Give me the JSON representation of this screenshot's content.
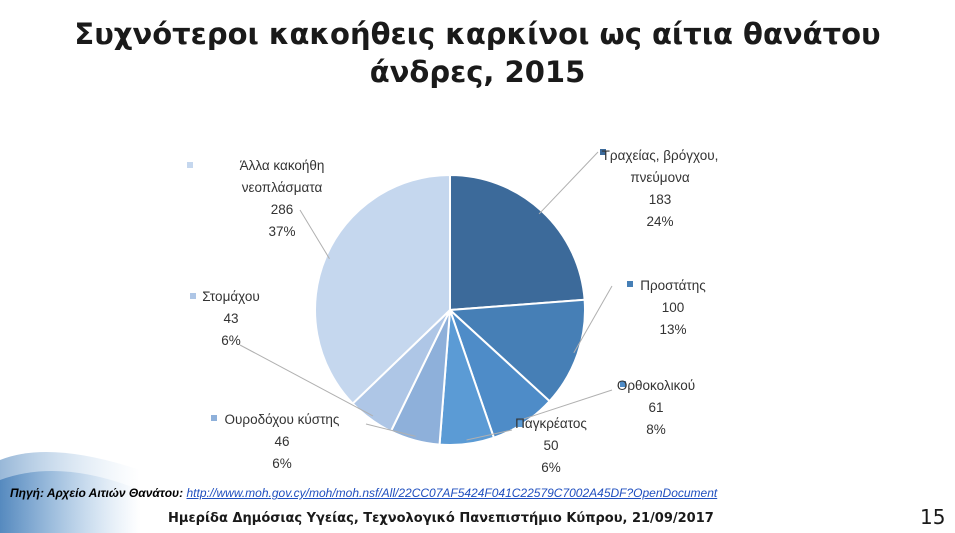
{
  "slide": {
    "title_line1": "Συχνότεροι κακοήθεις καρκίνοι ως αίτια θανάτου",
    "title_line2": "άνδρες, 2015",
    "source_prefix": "Πηγή: Αρχείο Αιτιών Θανάτου:",
    "source_link": "http://www.moh.gov.cy/moh/moh.nsf/All/22CC07AF5424F041C22579C7002A45DF?OpenDocument",
    "footer": "Ημερίδα Δημόσιας Υγείας, Τεχνολογικό Πανεπιστήμιο Κύπρου, 21/09/2017",
    "page_number": "15"
  },
  "chart_data": {
    "type": "pie",
    "title": "Συχνότεροι κακοήθεις καρκίνοι ως αίτια θανάτου άνδρες, 2015",
    "slices": [
      {
        "label_lines": [
          "Τραχείας, βρόγχου,",
          "πνεύμονα"
        ],
        "value": 183,
        "percent": "24%",
        "color": "#3c6a9a"
      },
      {
        "label_lines": [
          "Προστάτης"
        ],
        "value": 100,
        "percent": "13%",
        "color": "#467fb6"
      },
      {
        "label_lines": [
          "Ορθοκολικού"
        ],
        "value": 61,
        "percent": "8%",
        "color": "#4e8cc8"
      },
      {
        "label_lines": [
          "Παγκρέατος"
        ],
        "value": 50,
        "percent": "6%",
        "color": "#5b9bd5"
      },
      {
        "label_lines": [
          "Ουροδόχου κύστης"
        ],
        "value": 46,
        "percent": "6%",
        "color": "#8eb0da"
      },
      {
        "label_lines": [
          "Στομάχου"
        ],
        "value": 43,
        "percent": "6%",
        "color": "#aec6e6"
      },
      {
        "label_lines": [
          "Άλλα κακοήθη",
          "νεοπλάσματα"
        ],
        "value": 286,
        "percent": "37%",
        "color": "#c5d7ee"
      }
    ]
  }
}
